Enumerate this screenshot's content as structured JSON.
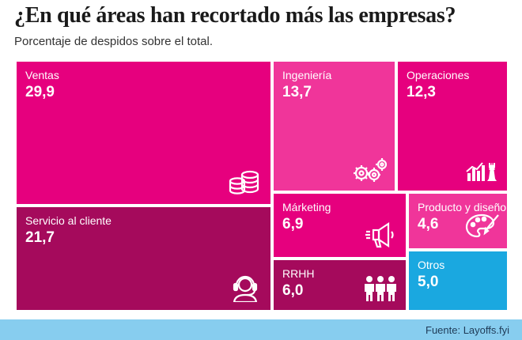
{
  "chart_data": {
    "type": "treemap",
    "title": "¿En qué áreas han recortado más las empresas?",
    "subtitle": "Porcentaje de despidos sobre el total.",
    "unit": "%",
    "items": [
      {
        "label": "Ventas",
        "value": 29.9,
        "display": "29,9",
        "color": "#e6007e",
        "icon": "coins-icon"
      },
      {
        "label": "Servicio al cliente",
        "value": 21.7,
        "display": "21,7",
        "color": "#a50a5c",
        "icon": "headset-icon"
      },
      {
        "label": "Ingeniería",
        "value": 13.7,
        "display": "13,7",
        "color": "#f0359a",
        "icon": "gears-icon"
      },
      {
        "label": "Operaciones",
        "value": 12.3,
        "display": "12,3",
        "color": "#e6007e",
        "icon": "chess-chart-icon"
      },
      {
        "label": "Márketing",
        "value": 6.9,
        "display": "6,9",
        "color": "#e6007e",
        "icon": "megaphone-icon"
      },
      {
        "label": "RRHH",
        "value": 6.0,
        "display": "6,0",
        "color": "#a50a5c",
        "icon": "people-icon"
      },
      {
        "label": "Producto y diseño",
        "value": 4.6,
        "display": "4,6",
        "color": "#f0359a",
        "icon": "palette-icon"
      },
      {
        "label": "Otros",
        "value": 5.0,
        "display": "5,0",
        "color": "#1aa8e0",
        "icon": ""
      }
    ]
  },
  "source": "Fuente: Layoffs.fyi"
}
